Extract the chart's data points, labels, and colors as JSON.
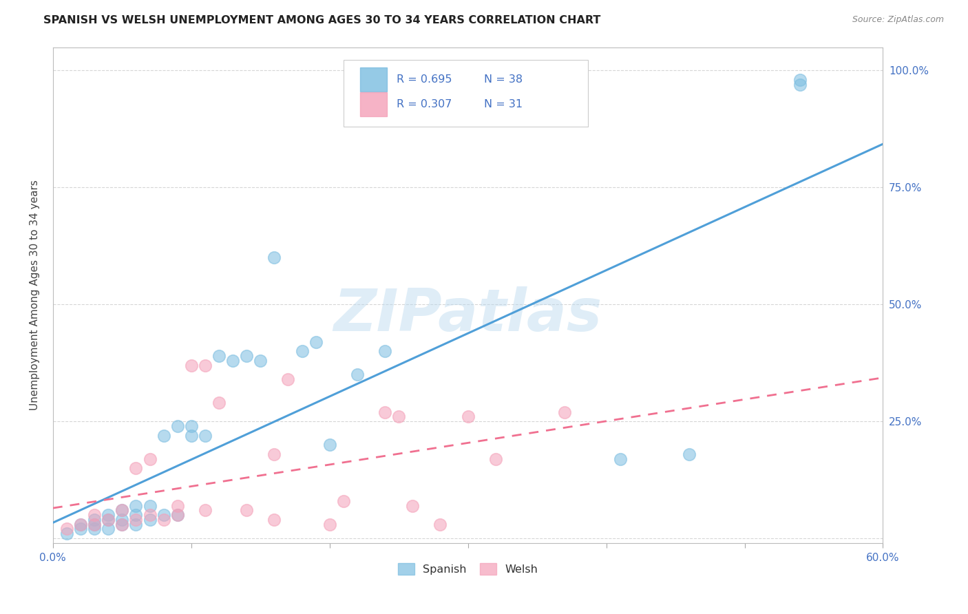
{
  "title": "SPANISH VS WELSH UNEMPLOYMENT AMONG AGES 30 TO 34 YEARS CORRELATION CHART",
  "source": "Source: ZipAtlas.com",
  "ylabel": "Unemployment Among Ages 30 to 34 years",
  "xlim": [
    0.0,
    0.6
  ],
  "ylim": [
    -0.01,
    1.05
  ],
  "x_ticks": [
    0.0,
    0.1,
    0.2,
    0.3,
    0.4,
    0.5,
    0.6
  ],
  "y_ticks": [
    0.0,
    0.25,
    0.5,
    0.75,
    1.0
  ],
  "spanish_color": "#7bbde0",
  "welsh_color": "#f4a0b8",
  "spanish_line_color": "#4f9fd8",
  "welsh_line_color": "#f07090",
  "spanish_R": 0.695,
  "spanish_N": 38,
  "welsh_R": 0.307,
  "welsh_N": 31,
  "watermark": "ZIPatlas",
  "background_color": "#ffffff",
  "grid_color": "#cccccc",
  "label_color": "#4472c4",
  "title_color": "#222222",
  "ylabel_color": "#444444",
  "spanish_scatter_x": [
    0.01,
    0.02,
    0.02,
    0.03,
    0.03,
    0.03,
    0.04,
    0.04,
    0.04,
    0.05,
    0.05,
    0.05,
    0.06,
    0.06,
    0.06,
    0.07,
    0.07,
    0.08,
    0.08,
    0.09,
    0.09,
    0.1,
    0.1,
    0.11,
    0.12,
    0.13,
    0.14,
    0.15,
    0.16,
    0.18,
    0.19,
    0.2,
    0.22,
    0.24,
    0.41,
    0.46,
    0.54,
    0.54
  ],
  "spanish_scatter_y": [
    0.01,
    0.02,
    0.03,
    0.02,
    0.03,
    0.04,
    0.02,
    0.04,
    0.05,
    0.03,
    0.04,
    0.06,
    0.03,
    0.05,
    0.07,
    0.04,
    0.07,
    0.05,
    0.22,
    0.05,
    0.24,
    0.22,
    0.24,
    0.22,
    0.39,
    0.38,
    0.39,
    0.38,
    0.6,
    0.4,
    0.42,
    0.2,
    0.35,
    0.4,
    0.17,
    0.18,
    0.97,
    0.98
  ],
  "welsh_scatter_x": [
    0.01,
    0.02,
    0.03,
    0.03,
    0.04,
    0.05,
    0.05,
    0.06,
    0.06,
    0.07,
    0.07,
    0.08,
    0.09,
    0.09,
    0.1,
    0.11,
    0.11,
    0.12,
    0.14,
    0.16,
    0.16,
    0.17,
    0.2,
    0.21,
    0.24,
    0.25,
    0.26,
    0.28,
    0.3,
    0.32,
    0.37
  ],
  "welsh_scatter_y": [
    0.02,
    0.03,
    0.03,
    0.05,
    0.04,
    0.03,
    0.06,
    0.04,
    0.15,
    0.05,
    0.17,
    0.04,
    0.05,
    0.07,
    0.37,
    0.06,
    0.37,
    0.29,
    0.06,
    0.04,
    0.18,
    0.34,
    0.03,
    0.08,
    0.27,
    0.26,
    0.07,
    0.03,
    0.26,
    0.17,
    0.27
  ]
}
